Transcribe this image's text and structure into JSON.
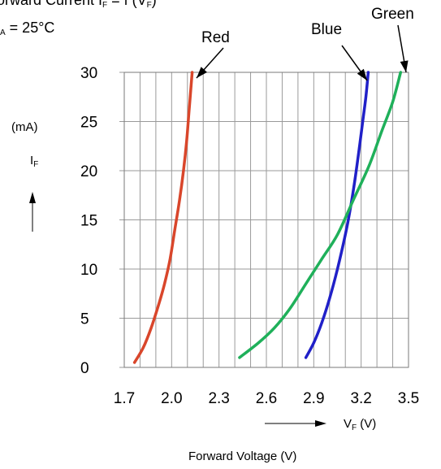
{
  "chart_data": {
    "type": "line",
    "title_line1_prefix": "orward Current I",
    "title_line1_sub": "F",
    "title_line1_mid": " = f (V",
    "title_line1_sub2": "F",
    "title_line1_suffix": ")",
    "title_line2_sub": "A",
    "title_line2_text": " = 25°C",
    "xlabel": "Forward Voltage (V)",
    "x_arrow_label": "V",
    "x_arrow_label_sub": "F",
    "x_arrow_label_unit": " (V)",
    "y_unit": "(mA)",
    "y_label": "I",
    "y_label_sub": "F",
    "xlim": [
      1.7,
      3.5
    ],
    "ylim": [
      0,
      30
    ],
    "x_ticks": [
      "1.7",
      "2.0",
      "2.3",
      "2.6",
      "2.9",
      "3.2",
      "3.5"
    ],
    "y_ticks": [
      "0",
      "5",
      "10",
      "15",
      "20",
      "25",
      "30"
    ],
    "grid": true,
    "series": [
      {
        "name": "Red",
        "color": "#d9462b",
        "x": [
          1.765,
          1.82,
          1.87,
          1.92,
          1.955,
          1.99,
          2.02,
          2.05,
          2.075,
          2.095,
          2.11,
          2.13
        ],
        "y": [
          0.5,
          2,
          4,
          6.5,
          8.5,
          11,
          14,
          17,
          20,
          23,
          26,
          30
        ]
      },
      {
        "name": "Blue",
        "color": "#2020c8",
        "x": [
          2.85,
          2.9,
          2.95,
          3.0,
          3.05,
          3.1,
          3.13,
          3.16,
          3.19,
          3.21,
          3.23,
          3.245
        ],
        "y": [
          1,
          2.5,
          4.5,
          7,
          10,
          13.5,
          16,
          19,
          22.5,
          25,
          27.5,
          30
        ]
      },
      {
        "name": "Green",
        "color": "#1fb05a",
        "x": [
          2.43,
          2.55,
          2.65,
          2.75,
          2.85,
          2.95,
          3.05,
          3.15,
          3.25,
          3.33,
          3.4,
          3.45
        ],
        "y": [
          1,
          2.5,
          4,
          6,
          8.5,
          11,
          13.5,
          17,
          20.5,
          24,
          27,
          30
        ]
      }
    ]
  }
}
